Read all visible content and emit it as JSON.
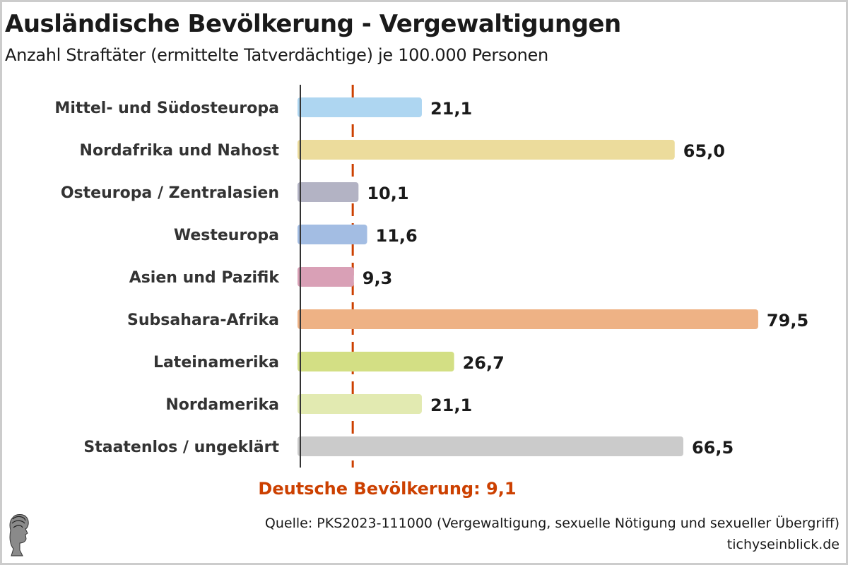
{
  "header": {
    "title": "Ausländische Bevölkerung - Vergewaltigungen",
    "subtitle": "Anzahl Straftäter (ermittelte Tatverdächtige) je 100.000 Personen"
  },
  "footer": {
    "source": "Quelle: PKS2023-111000 (Vergewaltigung, sexuelle Nötigung und sexueller Übergriff)",
    "site": "tichyseinblick.de",
    "logo_icon": "greek-head-logo-icon"
  },
  "chart_data": {
    "type": "bar",
    "orientation": "horizontal",
    "title": "Ausländische Bevölkerung - Vergewaltigungen",
    "subtitle": "Anzahl Straftäter (ermittelte Tatverdächtige) je 100.000 Personen",
    "xlabel": "",
    "ylabel": "",
    "xlim": [
      0,
      82
    ],
    "grid": false,
    "categories": [
      "Mittel- und Südosteuropa",
      "Nordafrika und Nahost",
      "Osteuropa / Zentralasien",
      "Westeuropa",
      "Asien und Pazifik",
      "Subsahara-Afrika",
      "Lateinamerika",
      "Nordamerika",
      "Staatenlos / ungeklärt"
    ],
    "values": [
      21.1,
      65.0,
      10.1,
      11.6,
      9.3,
      79.5,
      26.7,
      21.1,
      66.5
    ],
    "value_labels": [
      "21,1",
      "65,0",
      "10,1",
      "11,6",
      "9,3",
      "79,5",
      "26,7",
      "21,1",
      "66,5"
    ],
    "colors": [
      "#aed6f1",
      "#ecdc9c",
      "#b3b3c4",
      "#a3bde3",
      "#d9a0b6",
      "#eeb285",
      "#d3df84",
      "#e2eab1",
      "#cbcbcb"
    ],
    "reference_line": {
      "value": 9.1,
      "label": "Deutsche Bevölkerung: 9,1",
      "color": "#cc4000",
      "style": "dashed"
    },
    "axis_color": "#333333"
  }
}
